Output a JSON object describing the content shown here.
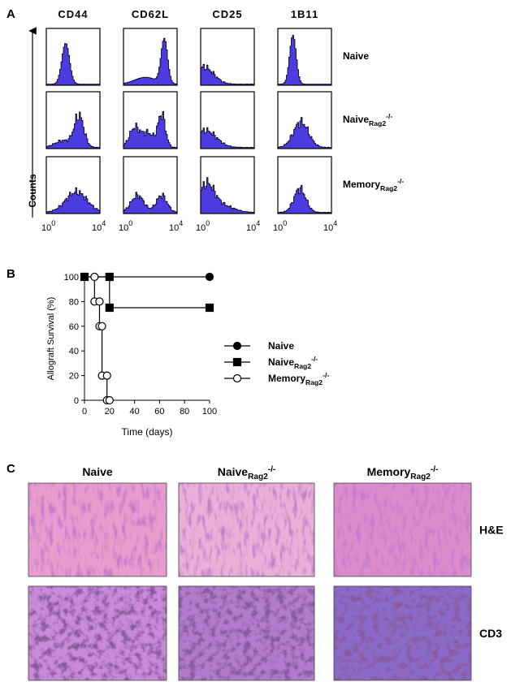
{
  "figure": {
    "panel_a": {
      "label": "A",
      "columns": [
        "CD44",
        "CD62L",
        "CD25",
        "1B11"
      ],
      "rows": [
        {
          "name": "Naive"
        },
        {
          "name": "Naive",
          "subscript": "Rag2",
          "superscript": "-/-"
        },
        {
          "name": "Memory",
          "subscript": "Rag2",
          "superscript": "-/-"
        }
      ],
      "ylabel": "Counts",
      "xtick_base": "10",
      "xtick_exps": [
        "0",
        "4"
      ]
    },
    "panel_b": {
      "label": "B"
    },
    "panel_c": {
      "label": "C",
      "columns": [
        {
          "name": "Naive"
        },
        {
          "name": "Naive",
          "subscript": "Rag2",
          "superscript": "-/-"
        },
        {
          "name": "Memory",
          "subscript": "Rag2",
          "superscript": "-/-"
        }
      ],
      "rows": [
        "H&E",
        "CD3"
      ]
    }
  },
  "chart_data": {
    "type": "line",
    "xlabel": "Time (days)",
    "ylabel": "Allograft Survival  (%)",
    "xlim": [
      0,
      100
    ],
    "ylim": [
      0,
      100
    ],
    "xticks": [
      0,
      20,
      40,
      60,
      80,
      100
    ],
    "yticks": [
      0,
      20,
      40,
      60,
      80,
      100
    ],
    "series": [
      {
        "name": "Naive",
        "marker": "circle",
        "color": "#000000",
        "fill": "#000000",
        "x": [
          0,
          100
        ],
        "values": [
          100,
          100
        ]
      },
      {
        "name": "Naive",
        "subscript": "Rag2",
        "superscript": "-/-",
        "marker": "square",
        "color": "#000000",
        "fill": "#000000",
        "x": [
          0,
          20,
          20,
          100
        ],
        "values": [
          100,
          100,
          75,
          75
        ]
      },
      {
        "name": "Memory",
        "subscript": "Rag2",
        "superscript": "-/-",
        "marker": "circle",
        "color": "#000000",
        "fill": "#ffffff",
        "x": [
          8,
          8,
          12,
          12,
          14,
          14,
          18,
          18,
          20
        ],
        "values": [
          100,
          80,
          80,
          60,
          60,
          20,
          20,
          0,
          0
        ]
      }
    ]
  }
}
